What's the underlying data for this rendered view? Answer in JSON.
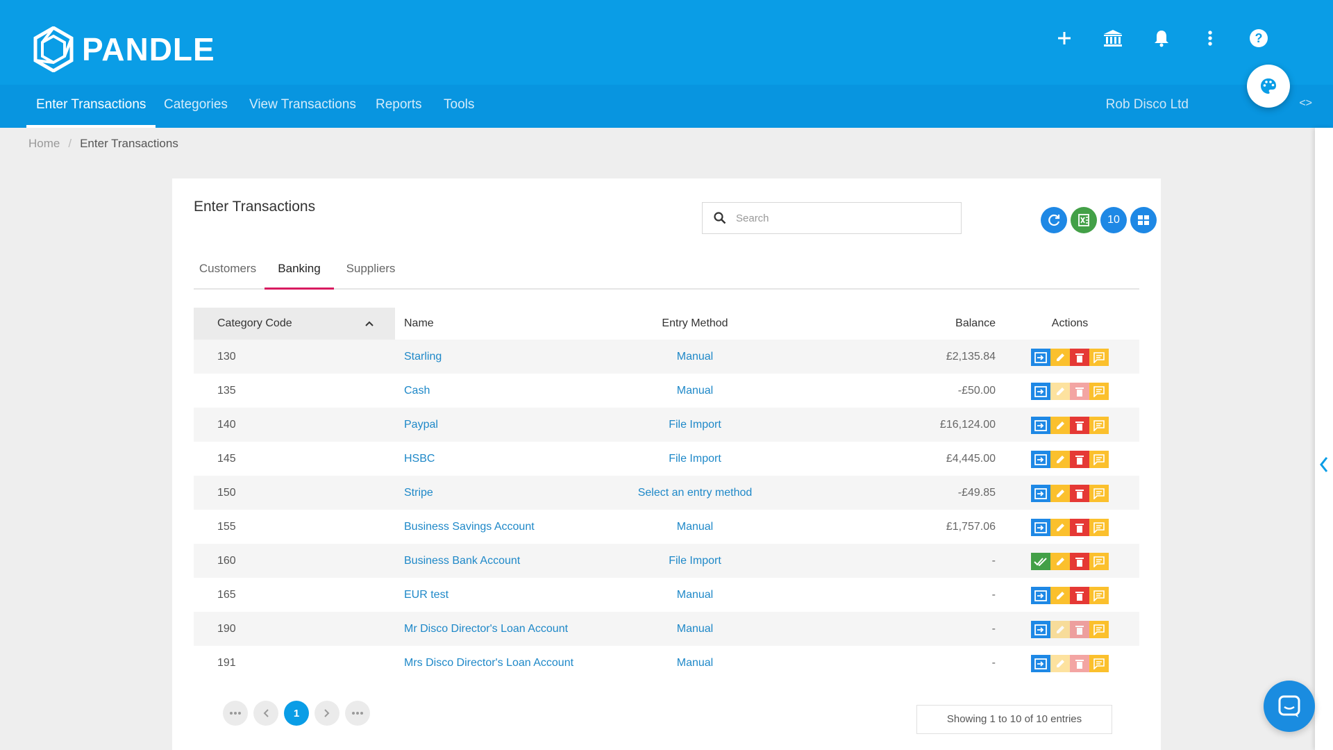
{
  "brand": {
    "name": "PANDLE"
  },
  "header_icons": [
    "plus-icon",
    "bank-icon",
    "bell-icon",
    "more-vert-icon",
    "help-icon"
  ],
  "nav": {
    "items": [
      {
        "label": "Enter Transactions",
        "active": true
      },
      {
        "label": "Categories",
        "active": false
      },
      {
        "label": "View Transactions",
        "active": false
      },
      {
        "label": "Reports",
        "active": false
      },
      {
        "label": "Tools",
        "active": false
      }
    ],
    "company": "Rob Disco Ltd",
    "code_toggle": "<>"
  },
  "breadcrumb": {
    "home": "Home",
    "separator": "/",
    "current": "Enter Transactions"
  },
  "card": {
    "title": "Enter Transactions",
    "search_placeholder": "Search",
    "count_button": "10"
  },
  "tabs": [
    {
      "label": "Customers",
      "active": false
    },
    {
      "label": "Banking",
      "active": true
    },
    {
      "label": "Suppliers",
      "active": false
    }
  ],
  "table": {
    "headers": {
      "code": "Category Code",
      "name": "Name",
      "method": "Entry Method",
      "balance": "Balance",
      "actions": "Actions"
    },
    "rows": [
      {
        "code": "130",
        "name": "Starling",
        "method": "Manual",
        "balance": "£2,135.84",
        "first_action": "post",
        "faded": false
      },
      {
        "code": "135",
        "name": "Cash",
        "method": "Manual",
        "balance": "-£50.00",
        "first_action": "post",
        "faded": true
      },
      {
        "code": "140",
        "name": "Paypal",
        "method": "File Import",
        "balance": "£16,124.00",
        "first_action": "post",
        "faded": false
      },
      {
        "code": "145",
        "name": "HSBC",
        "method": "File Import",
        "balance": "£4,445.00",
        "first_action": "post",
        "faded": false
      },
      {
        "code": "150",
        "name": "Stripe",
        "method": "Select an entry method",
        "balance": "-£49.85",
        "first_action": "post",
        "faded": false
      },
      {
        "code": "155",
        "name": "Business Savings Account",
        "method": "Manual",
        "balance": "£1,757.06",
        "first_action": "post",
        "faded": false
      },
      {
        "code": "160",
        "name": "Business Bank Account",
        "method": "File Import",
        "balance": "-",
        "first_action": "check",
        "faded": false
      },
      {
        "code": "165",
        "name": "EUR test",
        "method": "Manual",
        "balance": "-",
        "first_action": "post",
        "faded": false
      },
      {
        "code": "190",
        "name": "Mr Disco Director's Loan Account",
        "method": "Manual",
        "balance": "-",
        "first_action": "post",
        "faded": true
      },
      {
        "code": "191",
        "name": "Mrs Disco Director's Loan Account",
        "method": "Manual",
        "balance": "-",
        "first_action": "post",
        "faded": true
      }
    ]
  },
  "pagination": {
    "current": "1",
    "entries_text": "Showing 1 to 10 of 10 entries"
  },
  "colors": {
    "header_blue": "#0a9de6",
    "link_blue": "#1e88c8",
    "tab_accent": "#d81b60",
    "action_blue": "#1e88e5",
    "action_yellow": "#fbc02d",
    "action_red": "#e53935",
    "action_green": "#43a047"
  }
}
